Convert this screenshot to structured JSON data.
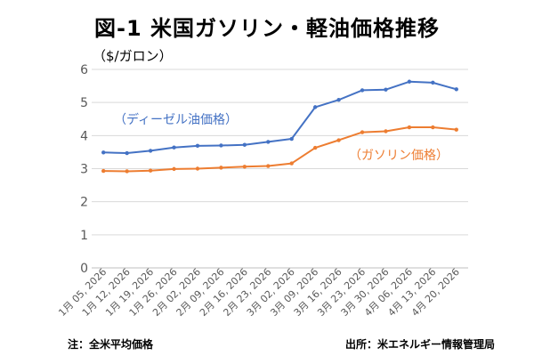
{
  "header": {
    "title": "図-1 米国ガソリン・軽油価格推移",
    "unit": "（$/ガロン）"
  },
  "footer": {
    "note": "注：全米平均価格",
    "source": "出所：米エネルギー情報管理局"
  },
  "chart_data": {
    "type": "line",
    "categories": [
      "1月 05, 2026",
      "1月 12, 2026",
      "1月 19, 2026",
      "1月 26, 2026",
      "2月 02, 2026",
      "2月 09, 2026",
      "2月 16, 2026",
      "2月 23, 2026",
      "3月 02, 2026",
      "3月 09, 2026",
      "3月 16, 2026",
      "3月 23, 2026",
      "3月 30, 2026",
      "4月 06, 2026",
      "4月 13, 2026",
      "4月 20, 2026"
    ],
    "series": [
      {
        "name": "（ディーゼル油価格）",
        "color": "#4472C4",
        "values": [
          3.49,
          3.47,
          3.54,
          3.64,
          3.69,
          3.7,
          3.72,
          3.81,
          3.9,
          4.86,
          5.08,
          5.37,
          5.39,
          5.63,
          5.6,
          5.4
        ]
      },
      {
        "name": "（ガソリン価格）",
        "color": "#ED7D31",
        "values": [
          2.93,
          2.92,
          2.94,
          2.99,
          3.0,
          3.03,
          3.06,
          3.08,
          3.16,
          3.63,
          3.86,
          4.1,
          4.13,
          4.25,
          4.25,
          4.18
        ]
      }
    ],
    "yticks": [
      0,
      1,
      2,
      3,
      4,
      5,
      6
    ],
    "ylim": [
      0,
      6
    ],
    "grid": true,
    "legend": "inline labels"
  }
}
